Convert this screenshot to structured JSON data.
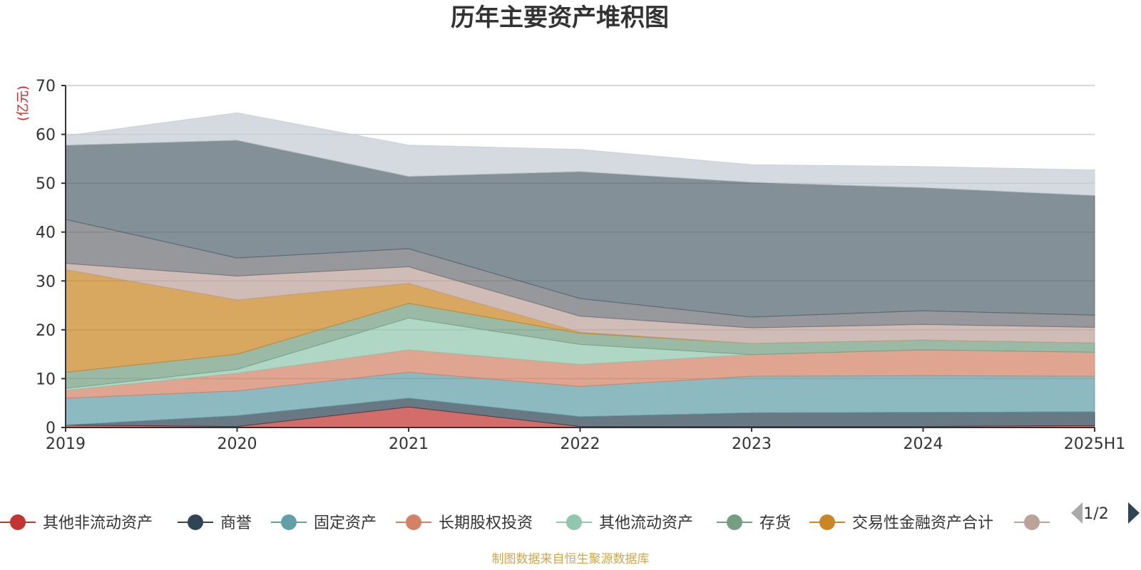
{
  "chart_data": {
    "type": "area",
    "stacked": true,
    "title": "历年主要资产堆积图",
    "unit_label": "(亿元)",
    "categories": [
      "2019",
      "2020",
      "2021",
      "2022",
      "2023",
      "2024",
      "2025H1"
    ],
    "ylim": [
      0,
      70
    ],
    "yticks": [
      0,
      10,
      20,
      30,
      40,
      50,
      60,
      70
    ],
    "grid": true,
    "series": [
      {
        "name": "其他非流动资产",
        "color": "#c23531",
        "values": [
          0.5,
          0.2,
          4.2,
          0.2,
          0.2,
          0.2,
          0.4
        ]
      },
      {
        "name": "商誉",
        "color": "#2f4554",
        "values": [
          0.0,
          2.2,
          1.8,
          2.0,
          2.8,
          2.9,
          2.8
        ]
      },
      {
        "name": "固定资产",
        "color": "#61a0a8",
        "values": [
          5.5,
          5.1,
          5.3,
          6.2,
          7.5,
          7.5,
          7.3
        ]
      },
      {
        "name": "长期股权投资",
        "color": "#d48265",
        "values": [
          1.6,
          3.6,
          4.6,
          4.5,
          4.4,
          5.3,
          4.9
        ]
      },
      {
        "name": "其他流动资产",
        "color": "#91c7ae",
        "values": [
          0.4,
          0.8,
          6.5,
          4.1,
          0.0,
          0.0,
          0.0
        ]
      },
      {
        "name": "存货",
        "color": "#749f83",
        "values": [
          3.3,
          3.1,
          3.0,
          2.3,
          2.3,
          2.0,
          1.9
        ]
      },
      {
        "name": "交易性金融资产合计",
        "color": "#ca8622",
        "values": [
          21.0,
          11.1,
          4.1,
          0.2,
          0.0,
          0.0,
          0.0
        ]
      },
      {
        "name": "",
        "color": "#bda29a",
        "values": [
          1.3,
          4.9,
          3.4,
          3.3,
          3.2,
          3.2,
          3.2
        ]
      },
      {
        "name": "",
        "color": "#6e7074",
        "values": [
          9.0,
          3.7,
          3.7,
          3.6,
          2.2,
          2.8,
          2.5
        ]
      },
      {
        "name": "",
        "color": "#546570",
        "values": [
          15.2,
          24.1,
          14.8,
          26.0,
          27.6,
          25.2,
          24.5
        ]
      },
      {
        "name": "",
        "color": "#c4ccd3",
        "values": [
          1.9,
          5.6,
          6.4,
          4.5,
          3.6,
          4.3,
          5.2
        ]
      }
    ],
    "legend": {
      "placement": "bottom",
      "page": "1/2"
    }
  },
  "source_note": "制图数据来自恒生聚源数据库"
}
